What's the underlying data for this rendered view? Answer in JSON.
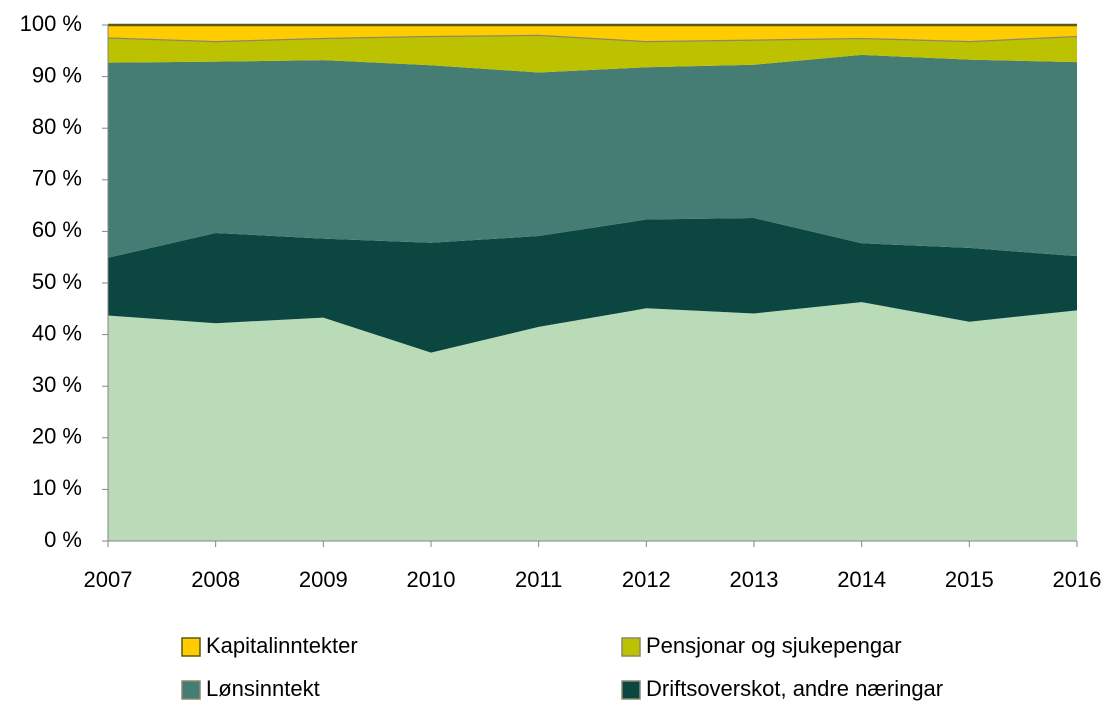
{
  "chart_data": {
    "type": "stacked_area",
    "categories": [
      "2007",
      "2008",
      "2009",
      "2010",
      "2011",
      "2012",
      "2013",
      "2014",
      "2015",
      "2016"
    ],
    "series": [
      {
        "color": "#b9dbb7",
        "values": [
          43.7,
          42.2,
          43.3,
          36.5,
          41.5,
          45.1,
          44.1,
          46.3,
          42.5,
          44.7
        ]
      },
      {
        "name": "Driftsoverskot, andre næringar",
        "color": "#0b4640",
        "values": [
          11.2,
          17.5,
          15.3,
          21.3,
          17.6,
          17.2,
          18.5,
          11.4,
          14.3,
          10.5
        ]
      },
      {
        "name": "Lønsinntekt",
        "color": "#457d74",
        "values": [
          37.8,
          33.2,
          34.6,
          34.4,
          31.7,
          29.5,
          29.7,
          36.5,
          36.5,
          37.6
        ]
      },
      {
        "name": "Pensjonar og sjukepengar",
        "color": "#bcc200",
        "values": [
          4.9,
          4.0,
          4.3,
          5.7,
          7.3,
          5.1,
          4.9,
          3.3,
          3.6,
          5.1
        ]
      },
      {
        "name": "Kapitalinntekter",
        "color": "#ffcc00",
        "values": [
          2.4,
          3.1,
          2.5,
          2.1,
          1.9,
          3.1,
          2.8,
          2.5,
          3.1,
          2.1
        ]
      }
    ],
    "ylim": [
      0,
      100
    ],
    "yticks": [
      {
        "value": 0,
        "label": "0 %"
      },
      {
        "value": 10,
        "label": "10 %"
      },
      {
        "value": 20,
        "label": "20 %"
      },
      {
        "value": 30,
        "label": "30 %"
      },
      {
        "value": 40,
        "label": "40 %"
      },
      {
        "value": 50,
        "label": "50 %"
      },
      {
        "value": 60,
        "label": "60 %"
      },
      {
        "value": 70,
        "label": "70 %"
      },
      {
        "value": 80,
        "label": "80 %"
      },
      {
        "value": 90,
        "label": "90 %"
      },
      {
        "value": 100,
        "label": "100 %"
      }
    ]
  }
}
